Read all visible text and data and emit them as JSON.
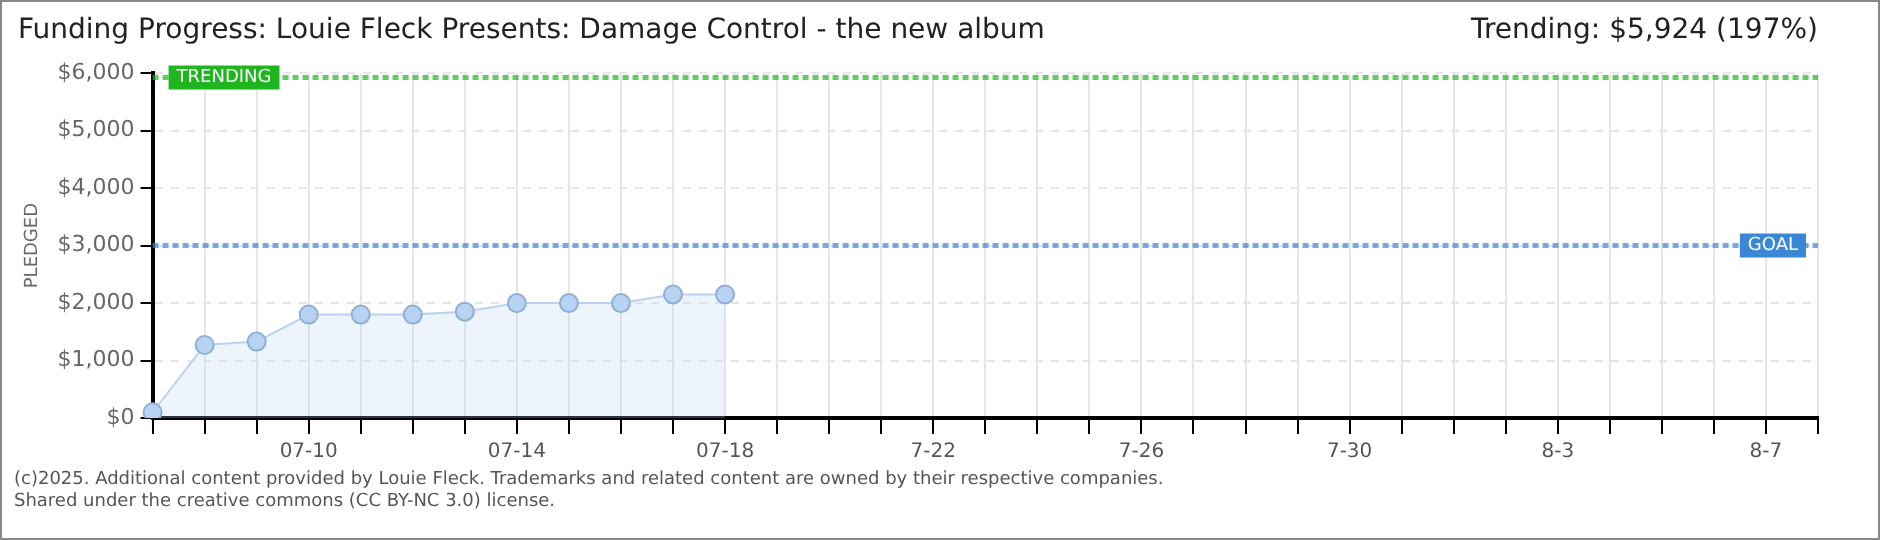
{
  "chart_data": {
    "type": "area",
    "title": "Funding Progress: Louie Fleck Presents: Damage Control - the new album",
    "ylabel": "PLEDGED",
    "annotations": [
      "Trending: $5,924 (197%)",
      "(c)2025. Additional content provided by Louie Fleck. Trademarks and related content are owned by their respective companies.",
      "Shared under the creative commons (CC BY-NC 3.0) license."
    ],
    "categories": [
      null,
      null,
      null,
      "07-10",
      null,
      null,
      null,
      "07-14",
      null,
      null,
      null,
      "07-18",
      null,
      null,
      null,
      "7-22",
      null,
      null,
      null,
      "7-26",
      null,
      null,
      null,
      "7-30",
      null,
      null,
      null,
      "8-3",
      null,
      null,
      null,
      "8-7",
      null
    ],
    "series": [
      {
        "color": "#b8d3f2",
        "values": [
          100,
          1270,
          1330,
          1800,
          1800,
          1800,
          1850,
          2000,
          2000,
          2000,
          2150,
          2150,
          null,
          null,
          null,
          null,
          null,
          null,
          null,
          null,
          null,
          null,
          null,
          null,
          null,
          null,
          null,
          null,
          null,
          null,
          null,
          null,
          null
        ]
      }
    ],
    "ylim": [
      0,
      6000
    ],
    "yticks": [
      {
        "value": 0,
        "label": "$0"
      },
      {
        "value": 1000,
        "label": "$1,000"
      },
      {
        "value": 2000,
        "label": "$2,000"
      },
      {
        "value": 3000,
        "label": "$3,000"
      },
      {
        "value": 4000,
        "label": "$4,000"
      },
      {
        "value": 5000,
        "label": "$5,000"
      },
      {
        "value": 6000,
        "label": "$6,000"
      }
    ],
    "ref_lines": [
      {
        "axis": "y",
        "value": 5924,
        "label": "TRENDING",
        "color": "#1fb51f",
        "line_style": "dotted"
      },
      {
        "axis": "y",
        "value": 3000,
        "label": "GOAL",
        "color": "#3a87d6",
        "line_style": "dotted"
      }
    ],
    "grid": true,
    "marker": "circle",
    "legend": false
  }
}
